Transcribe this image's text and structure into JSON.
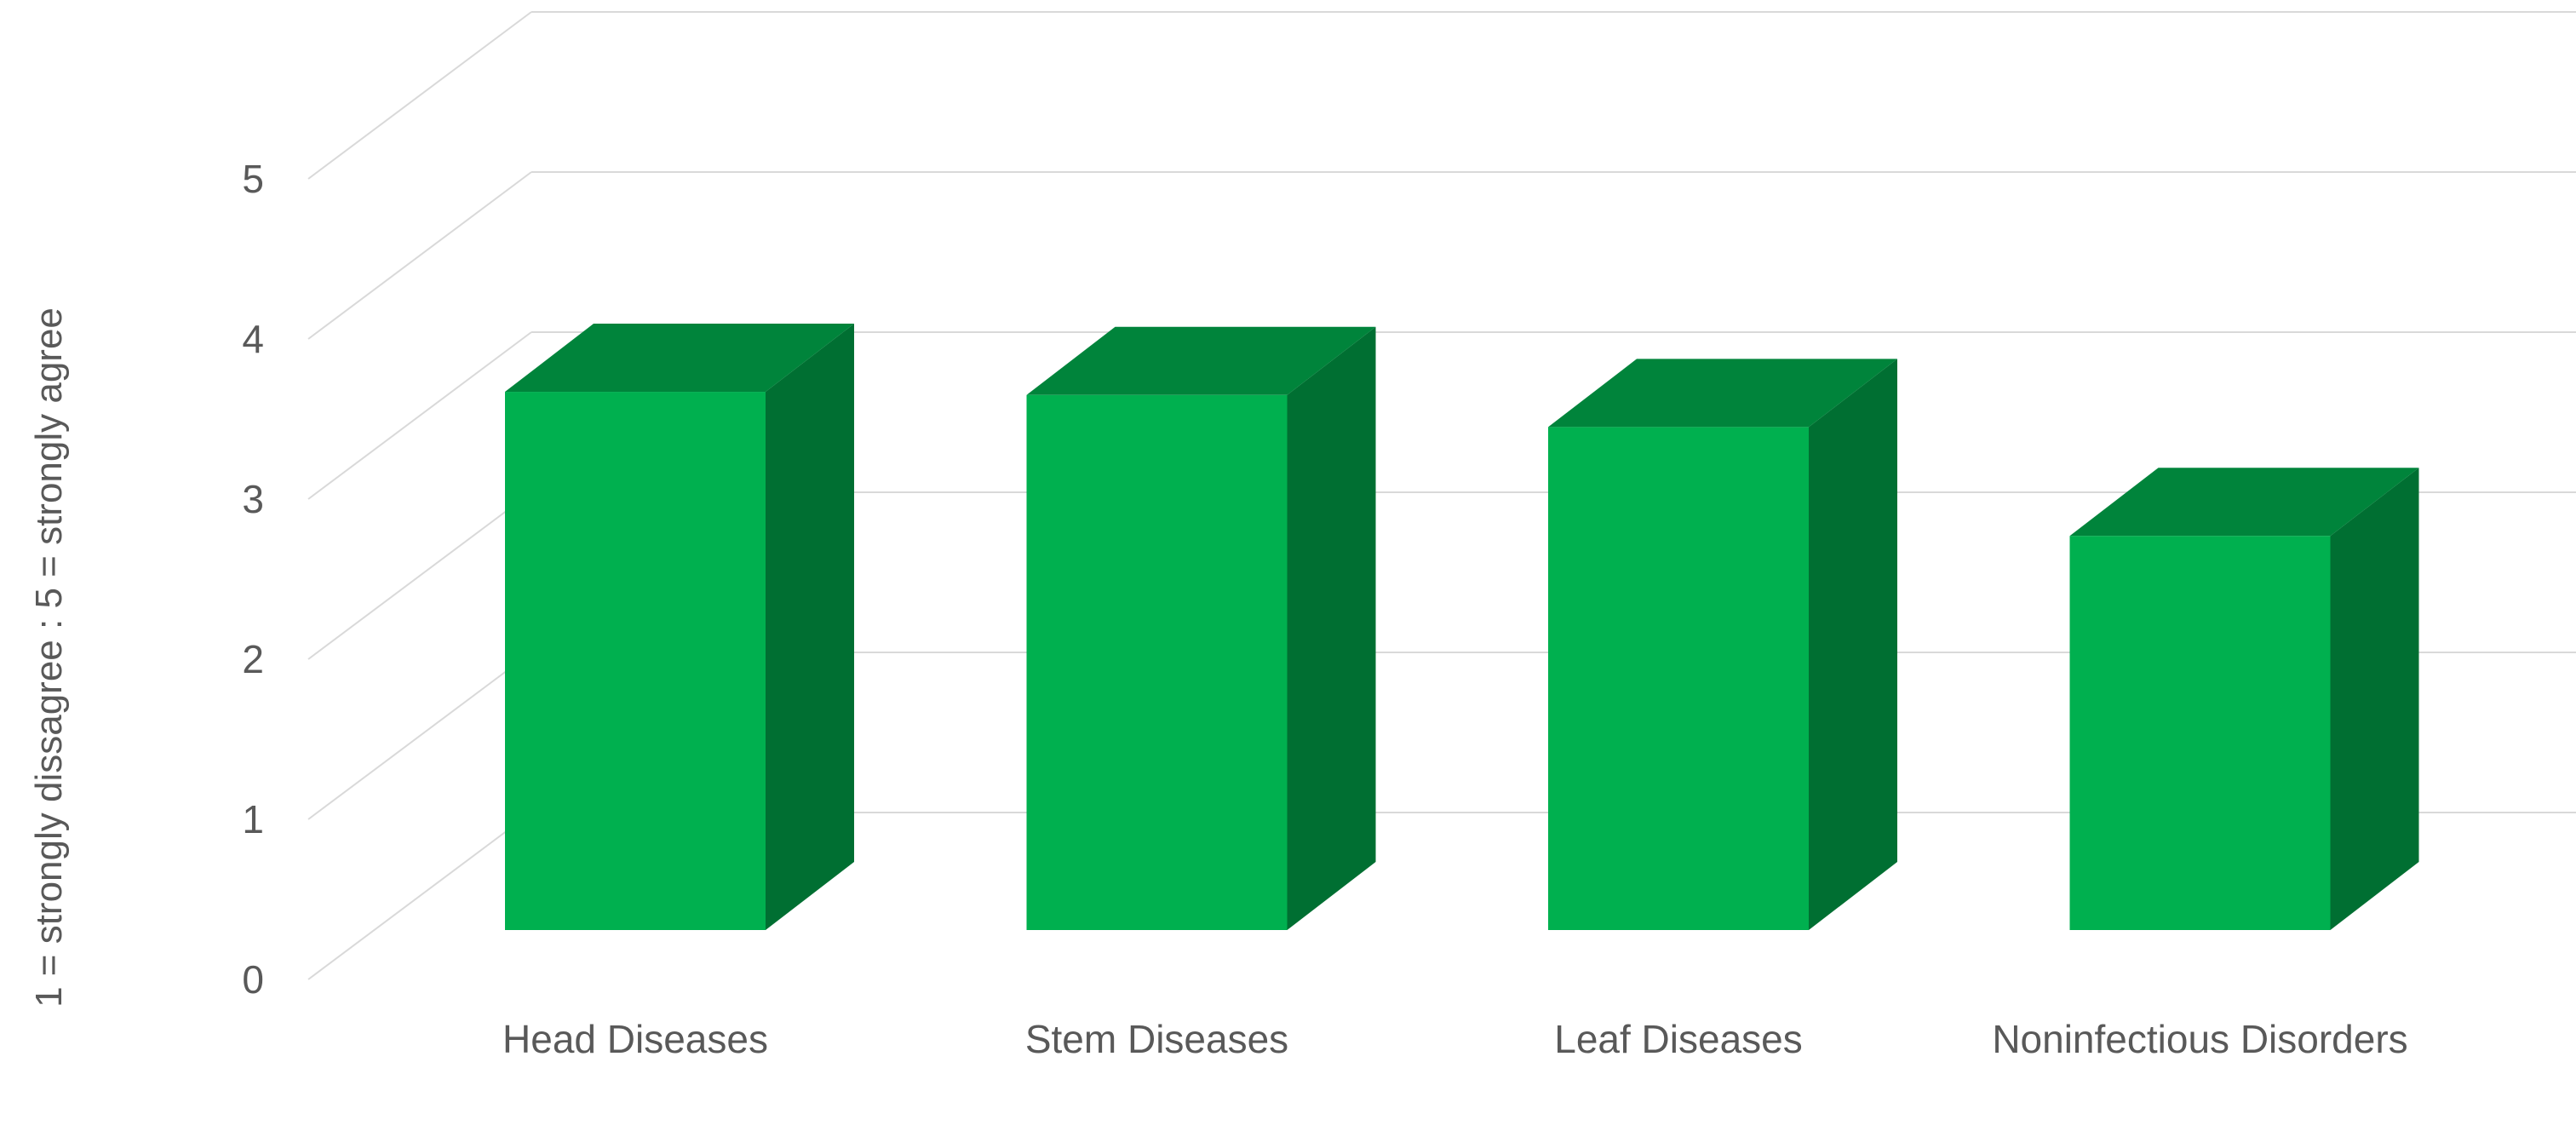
{
  "chart_data": {
    "type": "bar",
    "style": "3d-column",
    "title": "",
    "xlabel": "",
    "ylabel": "1 = strongly dissagree : 5 = strongly agree",
    "categories": [
      "Head Diseases",
      "Stem Diseases",
      "Leaf Diseases",
      "Noninfectious Disorders"
    ],
    "series": [
      {
        "values": [
          3.67,
          3.65,
          3.45,
          2.77
        ]
      }
    ],
    "ylim": [
      0,
      5
    ],
    "yticks": [
      "0",
      "1",
      "2",
      "3",
      "4",
      "5"
    ],
    "grid": true,
    "legend": "none",
    "colors": {
      "front": "#00b04f",
      "top": "#00843b",
      "side": "#006f32",
      "grid": "#d9d9d9",
      "text": "#595959"
    }
  }
}
